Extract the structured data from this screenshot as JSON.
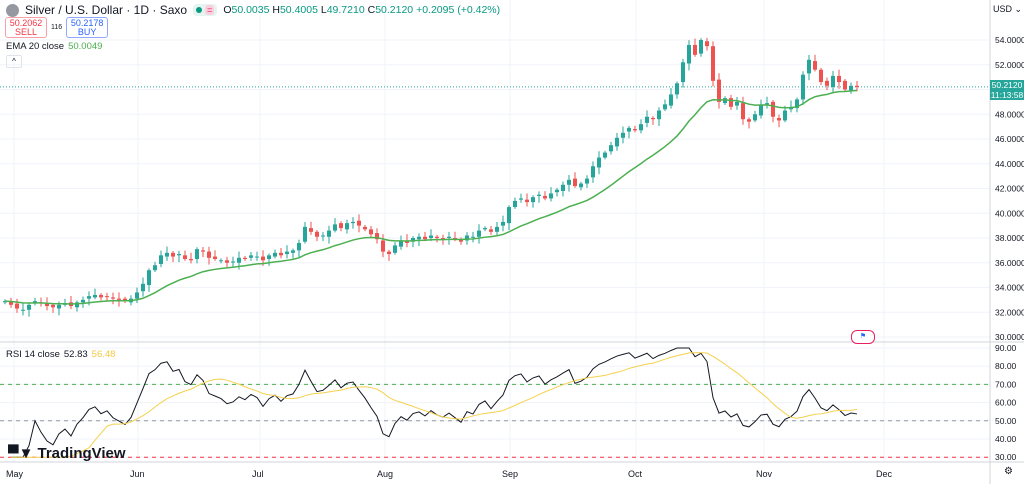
{
  "header": {
    "symbol": "Silver / U.S. Dollar · 1D · Saxo",
    "open": "50.0035",
    "high": "50.4005",
    "low": "49.7210",
    "close": "50.2120",
    "change": "+0.2095 (+0.42%)"
  },
  "trade": {
    "sell_price": "50.2062",
    "sell_label": "SELL",
    "spread": "116",
    "buy_price": "50.2178",
    "buy_label": "BUY"
  },
  "ema": {
    "label": "EMA 20 close",
    "value": "50.0049",
    "color": "#4caf50"
  },
  "rsi": {
    "label": "RSI 14 close",
    "value": "52.83",
    "ma_value": "56.48"
  },
  "price_axis": {
    "currency": "USD",
    "ticks": [
      "54.0000",
      "52.0000",
      "48.0000",
      "46.0000",
      "44.0000",
      "42.0000",
      "40.0000",
      "38.0000",
      "36.0000",
      "34.0000",
      "32.0000",
      "30.0000"
    ],
    "last_price": "50.2120",
    "countdown": "11:13:58"
  },
  "rsi_axis": {
    "ticks": [
      "90.00",
      "80.00",
      "70.00",
      "60.00",
      "50.00",
      "40.00",
      "30.00"
    ]
  },
  "time_axis": [
    "May",
    "Jun",
    "Jul",
    "Aug",
    "Sep",
    "Oct",
    "Nov",
    "Dec"
  ],
  "logo": "TradingView",
  "colors": {
    "up": "#26a69a",
    "down": "#ef5350",
    "ema": "#4caf50",
    "rsi": "#131722",
    "rsi_ma": "#f5d04d"
  },
  "chart_data": {
    "type": "candlestick",
    "closes": [
      32.9,
      32.6,
      32.3,
      32.2,
      32.6,
      32.9,
      32.7,
      32.5,
      32.4,
      32.6,
      32.7,
      32.5,
      32.8,
      33.0,
      33.3,
      33.4,
      33.2,
      33.3,
      33.1,
      33.0,
      32.9,
      33.1,
      33.6,
      34.3,
      35.4,
      35.8,
      36.6,
      36.8,
      36.5,
      36.7,
      36.3,
      36.2,
      37.1,
      36.9,
      36.4,
      36.3,
      36.2,
      36.0,
      36.1,
      36.4,
      36.3,
      36.6,
      36.5,
      36.2,
      36.6,
      36.8,
      36.6,
      36.9,
      37.0,
      37.6,
      38.9,
      38.5,
      38.1,
      38.2,
      38.6,
      39.1,
      38.8,
      39.2,
      39.3,
      39.0,
      38.7,
      38.3,
      37.9,
      36.9,
      36.7,
      37.4,
      37.8,
      37.6,
      38.0,
      38.1,
      37.9,
      38.2,
      38.0,
      37.9,
      38.1,
      37.9,
      37.7,
      38.2,
      38.1,
      38.6,
      38.8,
      38.5,
      38.9,
      39.3,
      40.5,
      41.0,
      41.2,
      40.9,
      41.3,
      41.5,
      41.2,
      41.6,
      41.9,
      42.3,
      42.7,
      42.2,
      42.4,
      42.8,
      43.8,
      44.5,
      44.9,
      45.5,
      46.1,
      46.5,
      46.9,
      46.7,
      47.2,
      47.8,
      47.6,
      48.3,
      48.8,
      49.6,
      50.5,
      52.2,
      53.6,
      52.8,
      54.0,
      53.5,
      50.7,
      49.0,
      49.3,
      48.6,
      49.0,
      47.6,
      47.4,
      48.0,
      48.8,
      48.9,
      47.8,
      47.5,
      48.3,
      48.6,
      49.2,
      51.2,
      52.4,
      51.6,
      50.6,
      50.3,
      51.1,
      50.6,
      50.0,
      50.3,
      50.21
    ],
    "ylim": [
      30,
      54
    ],
    "rsi_ylim": [
      30,
      90
    ]
  }
}
